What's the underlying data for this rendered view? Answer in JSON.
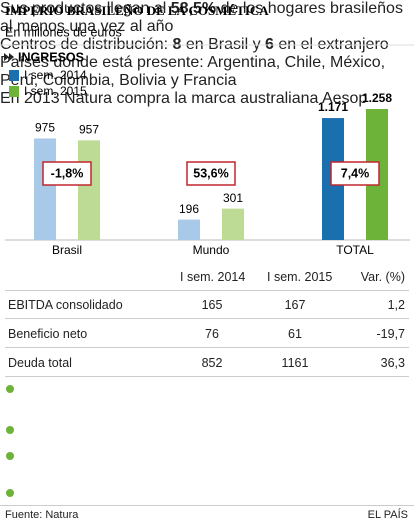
{
  "chart_data": {
    "type": "bar",
    "title": "IMPERIO BRASILEÑO DE LA COSMÉTICA",
    "subtitle": "En millones de euros",
    "section": "INGRESOS",
    "categories": [
      "Brasil",
      "Mundo",
      "TOTAL"
    ],
    "highlight": [
      false,
      false,
      true
    ],
    "series": [
      {
        "name": "I sem. 2014",
        "color": "#1a6faf",
        "muted_color": "#a8c9e8",
        "values": [
          975,
          196,
          1171
        ],
        "value_labels": [
          "975",
          "196",
          "1.171"
        ]
      },
      {
        "name": "I sem. 2015",
        "color": "#6db33a",
        "muted_color": "#bddb95",
        "values": [
          957,
          301,
          1258
        ],
        "value_labels": [
          "957",
          "301",
          "1.258"
        ]
      }
    ],
    "annotations": [
      "-1,8%",
      "53,6%",
      "7,4%"
    ]
  },
  "table": {
    "columns": [
      "I sem. 2014",
      "I sem. 2015",
      "Var. (%)"
    ],
    "rows": [
      [
        "EBITDA consolidado",
        "165",
        "167",
        "1,2"
      ],
      [
        "Beneficio neto",
        "76",
        "61",
        "-19,7"
      ],
      [
        "Deuda total",
        "852",
        "1161",
        "36,3"
      ]
    ]
  },
  "notes": [
    [
      {
        "text": "Sus productos llegan al "
      },
      {
        "text": "58,5%",
        "bold": true
      },
      {
        "text": " de los hogares brasileños al menos una vez al año"
      }
    ],
    [
      {
        "text": "Centros de distribución: "
      },
      {
        "text": "8",
        "bold": true
      },
      {
        "text": " en Brasil y "
      },
      {
        "text": "6",
        "bold": true
      },
      {
        "text": " en el extranjero"
      }
    ],
    [
      {
        "text": "Países dónde está presente: Argentina, Chile, México, Perú, Colombia, Bolivia y Francia"
      }
    ],
    [
      {
        "text": "En 2013 Natura compra la marca australiana Aesop"
      }
    ]
  ],
  "footer": {
    "source": "Fuente: Natura",
    "brand": "EL PAÍS"
  }
}
